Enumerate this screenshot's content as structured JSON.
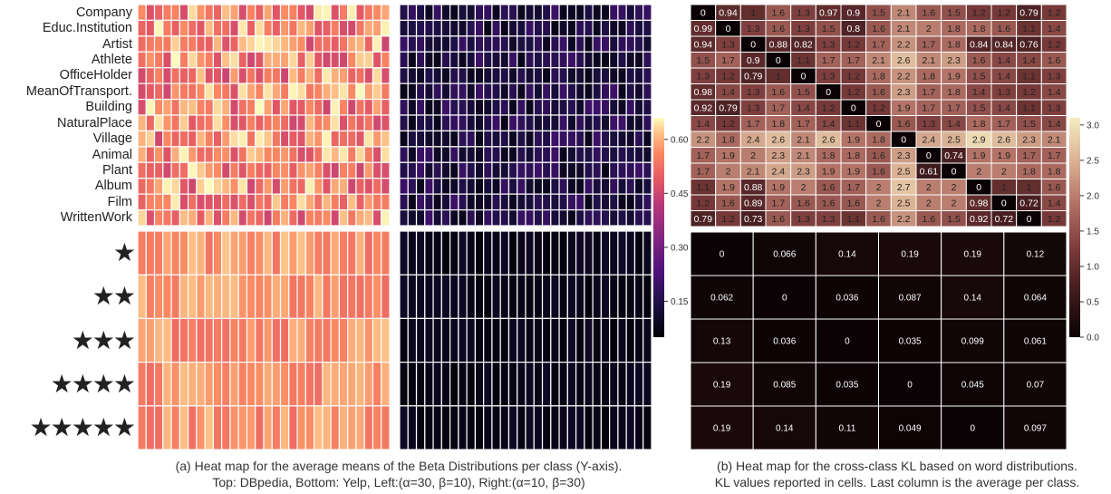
{
  "dbpedia_classes": [
    "Company",
    "Educ.Institution",
    "Artist",
    "Athlete",
    "OfficeHolder",
    "MeanOfTransport.",
    "Building",
    "NaturalPlace",
    "Village",
    "Animal",
    "Plant",
    "Album",
    "Film",
    "WrittenWork"
  ],
  "yelp_classes": [
    "★",
    "★★",
    "★★★",
    "★★★★",
    "★★★★★"
  ],
  "caption_a": {
    "line1": "(a) Heat map for the average means of the Beta Distributions per class (Y-axis).",
    "line2": "Top: DBpedia, Bottom: Yelp, Left:(α=30, β=10), Right:(α=10, β=30)"
  },
  "caption_b": {
    "line1": "(b) Heat map for the cross-class KL based on word distributions.",
    "line2": "KL values reported in cells. Last column is the average per class."
  },
  "colorbar_a": {
    "ticks": [
      "0.60",
      "0.45",
      "0.30",
      "0.15"
    ],
    "tick_values": [
      0.6,
      0.45,
      0.3,
      0.15
    ],
    "min": 0.05,
    "max": 0.66
  },
  "colorbar_b": {
    "ticks": [
      "3.0",
      "2.5",
      "2.0",
      "1.5",
      "1.0",
      "0.5",
      "0.0"
    ],
    "tick_values": [
      3.0,
      2.5,
      2.0,
      1.5,
      1.0,
      0.5,
      0.0
    ],
    "min": 0.0,
    "max": 3.1
  },
  "chart_data": [
    {
      "type": "heatmap",
      "title": "DBpedia, Left (α=30, β=10)",
      "rows": [
        "Company",
        "Educ.Institution",
        "Artist",
        "Athlete",
        "OfficeHolder",
        "MeanOfTransport.",
        "Building",
        "NaturalPlace",
        "Village",
        "Animal",
        "Plant",
        "Album",
        "Film",
        "WrittenWork"
      ],
      "n_cols": 30,
      "seed": 7,
      "value_range": [
        0.45,
        0.66
      ]
    },
    {
      "type": "heatmap",
      "title": "DBpedia, Right (α=10, β=30)",
      "rows": [
        "Company",
        "Educ.Institution",
        "Artist",
        "Athlete",
        "OfficeHolder",
        "MeanOfTransport.",
        "Building",
        "NaturalPlace",
        "Village",
        "Animal",
        "Plant",
        "Album",
        "Film",
        "WrittenWork"
      ],
      "n_cols": 30,
      "seed": 13,
      "value_range": [
        0.08,
        0.2
      ]
    },
    {
      "type": "heatmap",
      "title": "Yelp, Left (α=30, β=10)",
      "rows": [
        "★",
        "★★",
        "★★★",
        "★★★★",
        "★★★★★"
      ],
      "n_cols": 30,
      "seed": 21,
      "value_range": [
        0.52,
        0.62
      ]
    },
    {
      "type": "heatmap",
      "title": "Yelp, Right (α=10, β=30)",
      "rows": [
        "★",
        "★★",
        "★★★",
        "★★★★",
        "★★★★★"
      ],
      "n_cols": 30,
      "seed": 5,
      "value_range": [
        0.06,
        0.1
      ]
    },
    {
      "type": "heatmap",
      "title": "DBpedia cross-class KL",
      "rows": [
        "Company",
        "Educ.Institution",
        "Artist",
        "Athlete",
        "OfficeHolder",
        "MeanOfTransport.",
        "Building",
        "NaturalPlace",
        "Village",
        "Animal",
        "Plant",
        "Album",
        "Film",
        "WrittenWork"
      ],
      "values": [
        [
          0,
          0.94,
          1,
          1.6,
          1.3,
          0.97,
          0.9,
          1.5,
          2.1,
          1.6,
          1.5,
          1.2,
          1.2,
          0.79,
          1.2
        ],
        [
          0.99,
          0,
          1.3,
          1.6,
          1.3,
          1.5,
          0.8,
          1.6,
          2.1,
          2,
          1.8,
          1.8,
          1.6,
          1.1,
          1.4
        ],
        [
          0.94,
          1.3,
          0,
          0.88,
          0.82,
          1.3,
          1.2,
          1.7,
          2.2,
          1.7,
          1.8,
          0.84,
          0.84,
          0.76,
          1.2
        ],
        [
          1.5,
          1.7,
          0.9,
          0,
          1.1,
          1.7,
          1.7,
          2.1,
          2.6,
          2.1,
          2.3,
          1.6,
          1.4,
          1.4,
          1.6
        ],
        [
          1.3,
          1.2,
          0.79,
          1,
          0,
          1.3,
          1.2,
          1.8,
          2.2,
          1.8,
          1.9,
          1.5,
          1.4,
          1.1,
          1.3
        ],
        [
          0.98,
          1.4,
          1.3,
          1.6,
          1.5,
          0,
          1.2,
          1.6,
          2.3,
          1.7,
          1.8,
          1.4,
          1.3,
          1.2,
          1.4
        ],
        [
          0.92,
          0.79,
          1.3,
          1.7,
          1.4,
          1.2,
          0,
          1.2,
          1.9,
          1.7,
          1.7,
          1.5,
          1.4,
          1.1,
          1.3
        ],
        [
          1.4,
          1.2,
          1.7,
          1.8,
          1.7,
          1.4,
          1.1,
          0,
          1.6,
          1.3,
          1.4,
          1.8,
          1.7,
          1.5,
          1.4
        ],
        [
          2.2,
          1.8,
          2.4,
          2.6,
          2.1,
          2.6,
          1.9,
          1.8,
          0,
          2.4,
          2.5,
          2.9,
          2.6,
          2.3,
          2.1
        ],
        [
          1.7,
          1.9,
          2,
          2.3,
          2.1,
          1.8,
          1.8,
          1.6,
          2.3,
          0,
          0.74,
          1.9,
          1.9,
          1.7,
          1.7
        ],
        [
          1.7,
          2,
          2.1,
          2.4,
          2.3,
          1.9,
          1.9,
          1.6,
          2.5,
          0.61,
          0,
          2,
          2,
          1.8,
          1.8
        ],
        [
          1.1,
          1.9,
          0.88,
          1.9,
          2,
          1.6,
          1.7,
          2,
          2.7,
          2,
          2,
          0,
          1,
          1,
          1.6
        ],
        [
          1.2,
          1.6,
          0.89,
          1.7,
          1.6,
          1.6,
          1.6,
          2,
          2.5,
          2,
          2,
          0.98,
          0,
          0.72,
          1.4
        ],
        [
          0.79,
          1.2,
          0.73,
          1.6,
          1.3,
          1.3,
          1.1,
          1.6,
          2.2,
          1.6,
          1.5,
          0.92,
          0.72,
          0,
          1.2
        ]
      ]
    },
    {
      "type": "heatmap",
      "title": "Yelp cross-class KL",
      "rows": [
        "★",
        "★★",
        "★★★",
        "★★★★",
        "★★★★★"
      ],
      "values": [
        [
          0,
          0.066,
          0.14,
          0.19,
          0.19,
          0.12
        ],
        [
          0.062,
          0,
          0.036,
          0.087,
          0.14,
          0.064
        ],
        [
          0.13,
          0.036,
          0,
          0.035,
          0.099,
          0.061
        ],
        [
          0.19,
          0.085,
          0.035,
          0,
          0.045,
          0.07
        ],
        [
          0.19,
          0.14,
          0.11,
          0.049,
          0,
          0.097
        ]
      ]
    }
  ]
}
